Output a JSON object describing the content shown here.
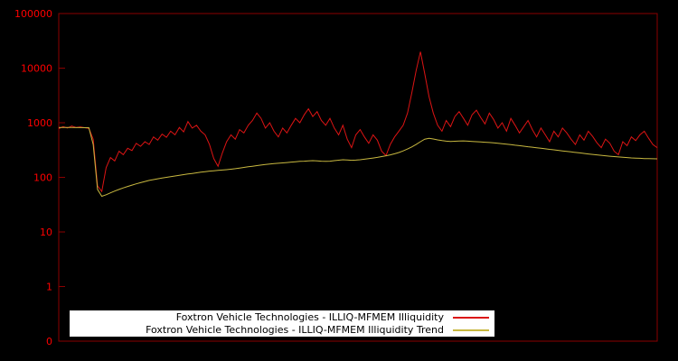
{
  "chart_data": {
    "type": "line",
    "title": "",
    "xlabel": "",
    "ylabel": "",
    "y_scale": "log",
    "grid": false,
    "legend_position": "bottom-center",
    "background_color": "#000000",
    "colors": {
      "frame": "#8b0000",
      "tick_label": "#ff0000"
    },
    "axis": {
      "y_tick_labels": [
        "100000",
        "10000",
        "1000",
        "100",
        "10",
        "1",
        "0"
      ]
    },
    "series": [
      {
        "name": "Foxtron Vehicle Technologies - ILLIQ-MFMEM Illiquidity",
        "color": "#dc1414",
        "values": [
          780,
          850,
          800,
          870,
          820,
          840,
          810,
          790,
          500,
          70,
          55,
          150,
          230,
          200,
          300,
          260,
          340,
          310,
          420,
          370,
          450,
          400,
          550,
          480,
          620,
          540,
          700,
          600,
          820,
          680,
          1050,
          800,
          900,
          700,
          600,
          400,
          220,
          160,
          280,
          450,
          600,
          500,
          750,
          650,
          900,
          1100,
          1500,
          1200,
          800,
          1000,
          700,
          550,
          800,
          650,
          900,
          1200,
          1000,
          1400,
          1800,
          1300,
          1600,
          1100,
          900,
          1200,
          800,
          600,
          900,
          500,
          350,
          600,
          750,
          550,
          420,
          600,
          480,
          300,
          250,
          400,
          550,
          700,
          900,
          1500,
          3500,
          9000,
          20000,
          8000,
          3000,
          1500,
          900,
          700,
          1100,
          850,
          1300,
          1600,
          1200,
          900,
          1400,
          1700,
          1250,
          950,
          1500,
          1150,
          800,
          1000,
          700,
          1200,
          900,
          650,
          850,
          1100,
          750,
          550,
          800,
          600,
          450,
          700,
          550,
          800,
          650,
          500,
          400,
          600,
          480,
          700,
          560,
          430,
          350,
          500,
          420,
          300,
          260,
          450,
          380,
          550,
          470,
          600,
          700,
          520,
          400,
          350
        ]
      },
      {
        "name": "Foxtron Vehicle Technologies - ILLIQ-MFMEM Illiquidity Trend",
        "color": "#c8b840",
        "values": [
          820,
          820,
          818,
          816,
          815,
          814,
          812,
          810,
          400,
          60,
          45,
          48,
          52,
          56,
          60,
          64,
          68,
          72,
          76,
          80,
          84,
          88,
          91,
          94,
          97,
          100,
          103,
          106,
          109,
          112,
          115,
          118,
          121,
          124,
          127,
          130,
          132,
          134,
          136,
          138,
          141,
          144,
          148,
          152,
          156,
          160,
          164,
          168,
          172,
          175,
          178,
          181,
          184,
          187,
          190,
          193,
          196,
          198,
          200,
          202,
          200,
          198,
          196,
          198,
          202,
          206,
          210,
          208,
          205,
          207,
          210,
          215,
          220,
          226,
          232,
          240,
          248,
          258,
          270,
          285,
          305,
          330,
          360,
          400,
          450,
          500,
          520,
          505,
          485,
          470,
          460,
          455,
          458,
          462,
          465,
          460,
          455,
          450,
          445,
          440,
          435,
          428,
          420,
          412,
          404,
          396,
          388,
          380,
          372,
          364,
          356,
          348,
          340,
          333,
          326,
          319,
          312,
          305,
          298,
          292,
          286,
          280,
          274,
          268,
          263,
          258,
          253,
          248,
          244,
          240,
          236,
          233,
          230,
          227,
          225,
          223,
          221,
          220,
          219,
          218
        ]
      }
    ]
  }
}
